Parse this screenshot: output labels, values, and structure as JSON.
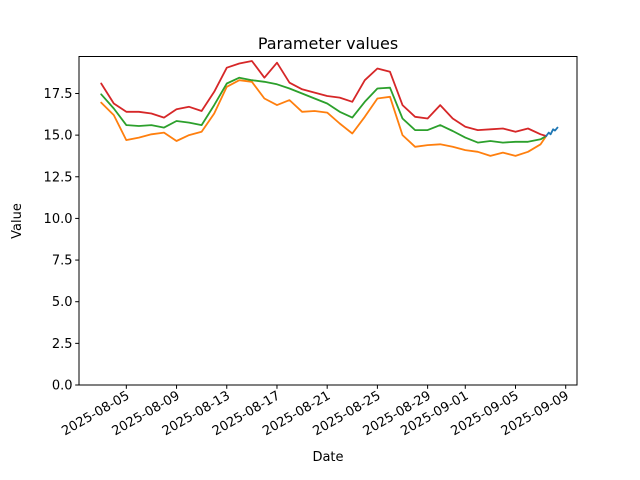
{
  "chart_data": {
    "type": "line",
    "title": "Parameter values",
    "xlabel": "Date",
    "ylabel": "Value",
    "grid": false,
    "legend": null,
    "x_unit": "days since 2025-08-03",
    "dates": [
      "2025-08-03",
      "2025-08-04",
      "2025-08-05",
      "2025-08-06",
      "2025-08-07",
      "2025-08-08",
      "2025-08-09",
      "2025-08-10",
      "2025-08-11",
      "2025-08-12",
      "2025-08-13",
      "2025-08-14",
      "2025-08-15",
      "2025-08-16",
      "2025-08-17",
      "2025-08-18",
      "2025-08-19",
      "2025-08-20",
      "2025-08-21",
      "2025-08-22",
      "2025-08-23",
      "2025-08-24",
      "2025-08-25",
      "2025-08-26",
      "2025-08-27",
      "2025-08-28",
      "2025-08-29",
      "2025-08-30",
      "2025-08-31",
      "2025-09-01",
      "2025-09-02",
      "2025-09-03",
      "2025-09-04",
      "2025-09-05",
      "2025-09-06",
      "2025-09-07"
    ],
    "xlim_days": [
      -1.77,
      37.9
    ],
    "ylim": [
      0,
      19.72
    ],
    "y_ticks": [
      {
        "v": 0.0,
        "label": "0.0"
      },
      {
        "v": 2.5,
        "label": "2.5"
      },
      {
        "v": 5.0,
        "label": "5.0"
      },
      {
        "v": 7.5,
        "label": "7.5"
      },
      {
        "v": 10.0,
        "label": "10.0"
      },
      {
        "v": 12.5,
        "label": "12.5"
      },
      {
        "v": 15.0,
        "label": "15.0"
      },
      {
        "v": 17.5,
        "label": "17.5"
      }
    ],
    "x_ticks": [
      {
        "day": 2,
        "label": "2025-08-05"
      },
      {
        "day": 6,
        "label": "2025-08-09"
      },
      {
        "day": 10,
        "label": "2025-08-13"
      },
      {
        "day": 14,
        "label": "2025-08-17"
      },
      {
        "day": 18,
        "label": "2025-08-21"
      },
      {
        "day": 22,
        "label": "2025-08-25"
      },
      {
        "day": 26,
        "label": "2025-08-29"
      },
      {
        "day": 29,
        "label": "2025-09-01"
      },
      {
        "day": 33,
        "label": "2025-09-05"
      },
      {
        "day": 37,
        "label": "2025-09-09"
      }
    ],
    "series": [
      {
        "name": "orange",
        "color": "#ff7f0e",
        "x": [
          0,
          1,
          2,
          3,
          4,
          5,
          6,
          7,
          8,
          9,
          10,
          11,
          12,
          13,
          14,
          15,
          16,
          17,
          18,
          19,
          20,
          21,
          22,
          23,
          24,
          25,
          26,
          27,
          28,
          29,
          30,
          31,
          32,
          33,
          34,
          35,
          35.45
        ],
        "values": [
          16.95,
          16.2,
          14.7,
          14.85,
          15.05,
          15.15,
          14.65,
          15.0,
          15.2,
          16.3,
          17.9,
          18.3,
          18.2,
          17.2,
          16.8,
          17.1,
          16.4,
          16.45,
          16.35,
          15.7,
          15.1,
          16.1,
          17.2,
          17.3,
          15.0,
          14.3,
          14.4,
          14.45,
          14.3,
          14.1,
          14.0,
          13.75,
          13.95,
          13.75,
          14.0,
          14.45,
          14.95
        ]
      },
      {
        "name": "green",
        "color": "#2ca02c",
        "x": [
          0,
          1,
          2,
          3,
          4,
          5,
          6,
          7,
          8,
          9,
          10,
          11,
          12,
          13,
          14,
          15,
          16,
          17,
          18,
          19,
          20,
          21,
          22,
          23,
          24,
          25,
          26,
          27,
          28,
          29,
          30,
          31,
          32,
          33,
          34,
          35,
          35.45
        ],
        "values": [
          17.45,
          16.6,
          15.6,
          15.55,
          15.6,
          15.45,
          15.85,
          15.75,
          15.6,
          16.8,
          18.1,
          18.45,
          18.3,
          18.2,
          18.05,
          17.8,
          17.5,
          17.2,
          16.9,
          16.4,
          16.05,
          17.0,
          17.8,
          17.85,
          16.0,
          15.3,
          15.3,
          15.6,
          15.25,
          14.85,
          14.55,
          14.65,
          14.55,
          14.6,
          14.6,
          14.75,
          14.95
        ]
      },
      {
        "name": "red",
        "color": "#d62728",
        "x": [
          0,
          1,
          2,
          3,
          4,
          5,
          6,
          7,
          8,
          9,
          10,
          11,
          12,
          13,
          14,
          15,
          16,
          17,
          18,
          19,
          20,
          21,
          22,
          23,
          24,
          25,
          26,
          27,
          28,
          29,
          30,
          31,
          32,
          33,
          34,
          35,
          35.45
        ],
        "values": [
          18.1,
          16.9,
          16.4,
          16.4,
          16.3,
          16.05,
          16.55,
          16.7,
          16.45,
          17.6,
          19.05,
          19.3,
          19.45,
          18.45,
          19.35,
          18.15,
          17.75,
          17.55,
          17.35,
          17.25,
          17.0,
          18.3,
          19.0,
          18.8,
          16.8,
          16.1,
          16.0,
          16.8,
          16.0,
          15.5,
          15.3,
          15.35,
          15.4,
          15.2,
          15.4,
          15.05,
          14.95
        ]
      },
      {
        "name": "blue",
        "color": "#1f77b4",
        "x": [
          35.45,
          35.65,
          35.8,
          36.0,
          36.15,
          36.35
        ],
        "values": [
          14.95,
          15.15,
          15.05,
          15.35,
          15.27,
          15.45
        ]
      }
    ]
  }
}
